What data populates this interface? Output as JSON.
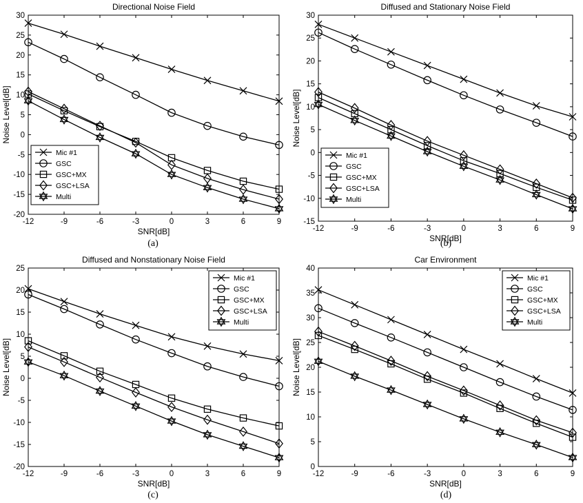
{
  "chart_data": [
    {
      "type": "line",
      "title": "Directional Noise Field",
      "xlabel": "SNR[dB]",
      "ylabel": "Noise Level[dB]",
      "sublabel": "(a)",
      "x": [
        -12,
        -9,
        -6,
        -3,
        0,
        3,
        6,
        9
      ],
      "xticks": [
        "-12",
        "-9",
        "-6",
        "-3",
        "0",
        "3",
        "6",
        "9"
      ],
      "xlim": [
        -12,
        9
      ],
      "ylim": [
        -20,
        30
      ],
      "yticks": [
        -20,
        -15,
        -10,
        -5,
        0,
        5,
        10,
        15,
        20,
        25,
        30
      ],
      "legend_position": "bottom-left",
      "series": [
        {
          "name": "Mic #1",
          "marker": "x",
          "values": [
            28.0,
            25.2,
            22.2,
            19.3,
            16.4,
            13.6,
            11.0,
            8.4
          ]
        },
        {
          "name": "GSC",
          "marker": "circle",
          "values": [
            23.2,
            19.0,
            14.4,
            10.0,
            5.5,
            2.2,
            -0.5,
            -2.6
          ]
        },
        {
          "name": "GSC+MX",
          "marker": "square",
          "values": [
            10.2,
            6.0,
            2.0,
            -1.7,
            -5.8,
            -9.0,
            -11.7,
            -13.7
          ]
        },
        {
          "name": "GSC+LSA",
          "marker": "diamond",
          "values": [
            10.8,
            6.5,
            2.2,
            -2.0,
            -7.6,
            -11.0,
            -13.8,
            -16.2
          ]
        },
        {
          "name": "Multi",
          "marker": "hexagram",
          "values": [
            8.5,
            3.8,
            -0.7,
            -4.8,
            -10.0,
            -13.3,
            -16.2,
            -18.6
          ]
        }
      ]
    },
    {
      "type": "line",
      "title": "Diffused and Stationary Noise Field",
      "xlabel": "SNR[dB]",
      "ylabel": "Noise Level[dB]",
      "sublabel": "(b)",
      "x": [
        -12,
        -9,
        -6,
        -3,
        0,
        3,
        6,
        9
      ],
      "xticks": [
        "-12",
        "-9",
        "-6",
        "-3",
        "0",
        "3",
        "6",
        "9"
      ],
      "xlim": [
        -12,
        9
      ],
      "ylim": [
        -15,
        30
      ],
      "yticks": [
        -15,
        -10,
        -5,
        0,
        5,
        10,
        15,
        20,
        25,
        30
      ],
      "legend_position": "bottom-left",
      "series": [
        {
          "name": "Mic #1",
          "marker": "x",
          "values": [
            28.0,
            25.0,
            22.0,
            19.0,
            16.0,
            13.0,
            10.2,
            7.8
          ]
        },
        {
          "name": "GSC",
          "marker": "circle",
          "values": [
            26.2,
            22.6,
            19.2,
            15.8,
            12.5,
            9.4,
            6.5,
            3.5
          ]
        },
        {
          "name": "GSC+MX",
          "marker": "square",
          "values": [
            12.0,
            8.5,
            5.0,
            1.5,
            -1.8,
            -4.6,
            -7.6,
            -10.4
          ]
        },
        {
          "name": "GSC+LSA",
          "marker": "diamond",
          "values": [
            13.2,
            9.7,
            6.0,
            2.5,
            -0.6,
            -3.7,
            -6.8,
            -9.9
          ]
        },
        {
          "name": "Multi",
          "marker": "hexagram",
          "values": [
            10.5,
            7.0,
            3.6,
            0.2,
            -3.0,
            -6.0,
            -9.2,
            -12.3
          ]
        }
      ]
    },
    {
      "type": "line",
      "title": "Diffused and Nonstationary Noise Field",
      "xlabel": "SNR[dB]",
      "ylabel": "Noise Level[dB]",
      "sublabel": "(c)",
      "x": [
        -12,
        -9,
        -6,
        -3,
        0,
        3,
        6,
        9
      ],
      "xticks": [
        "-12",
        "-9",
        "-6",
        "-3",
        "0",
        "3",
        "6",
        "9"
      ],
      "xlim": [
        -12,
        9
      ],
      "ylim": [
        -20,
        25
      ],
      "yticks": [
        -20,
        -15,
        -10,
        -5,
        0,
        5,
        10,
        15,
        20,
        25
      ],
      "legend_position": "top-right",
      "series": [
        {
          "name": "Mic #1",
          "marker": "x",
          "values": [
            20.3,
            17.4,
            14.6,
            12.0,
            9.4,
            7.3,
            5.5,
            4.0
          ]
        },
        {
          "name": "GSC",
          "marker": "circle",
          "values": [
            19.0,
            15.7,
            12.2,
            8.8,
            5.7,
            2.7,
            0.3,
            -1.8
          ]
        },
        {
          "name": "GSC+MX",
          "marker": "square",
          "values": [
            8.5,
            5.1,
            1.6,
            -1.4,
            -4.5,
            -7.0,
            -9.0,
            -10.8
          ]
        },
        {
          "name": "GSC+LSA",
          "marker": "diamond",
          "values": [
            7.1,
            3.7,
            0.2,
            -3.2,
            -6.5,
            -9.4,
            -12.1,
            -14.8
          ]
        },
        {
          "name": "Multi",
          "marker": "hexagram",
          "values": [
            3.7,
            0.6,
            -2.9,
            -6.3,
            -9.7,
            -12.8,
            -15.4,
            -18.0
          ]
        }
      ]
    },
    {
      "type": "line",
      "title": "Car Environment",
      "xlabel": "SNR[dB]",
      "ylabel": "Noise Level[dB]",
      "sublabel": "(d)",
      "x": [
        -12,
        -9,
        -6,
        -3,
        0,
        3,
        6,
        9
      ],
      "xticks": [
        "-12",
        "-9",
        "-6",
        "-3",
        "0",
        "3",
        "6",
        "9"
      ],
      "xlim": [
        -12,
        9
      ],
      "ylim": [
        0,
        40
      ],
      "yticks": [
        0,
        5,
        10,
        15,
        20,
        25,
        30,
        35,
        40
      ],
      "legend_position": "top-right",
      "series": [
        {
          "name": "Mic #1",
          "marker": "x",
          "values": [
            35.6,
            32.6,
            29.6,
            26.6,
            23.6,
            20.7,
            17.7,
            14.8
          ]
        },
        {
          "name": "GSC",
          "marker": "circle",
          "values": [
            31.9,
            28.9,
            26.0,
            23.0,
            20.0,
            17.0,
            14.1,
            11.4
          ]
        },
        {
          "name": "GSC+MX",
          "marker": "square",
          "values": [
            26.4,
            23.6,
            20.7,
            17.6,
            14.8,
            11.7,
            8.7,
            5.9
          ]
        },
        {
          "name": "GSC+LSA",
          "marker": "diamond",
          "values": [
            27.2,
            24.3,
            21.3,
            18.2,
            15.3,
            12.3,
            9.3,
            6.8
          ]
        },
        {
          "name": "Multi",
          "marker": "hexagram",
          "values": [
            21.2,
            18.2,
            15.4,
            12.5,
            9.6,
            6.9,
            4.4,
            1.8
          ]
        }
      ]
    }
  ]
}
